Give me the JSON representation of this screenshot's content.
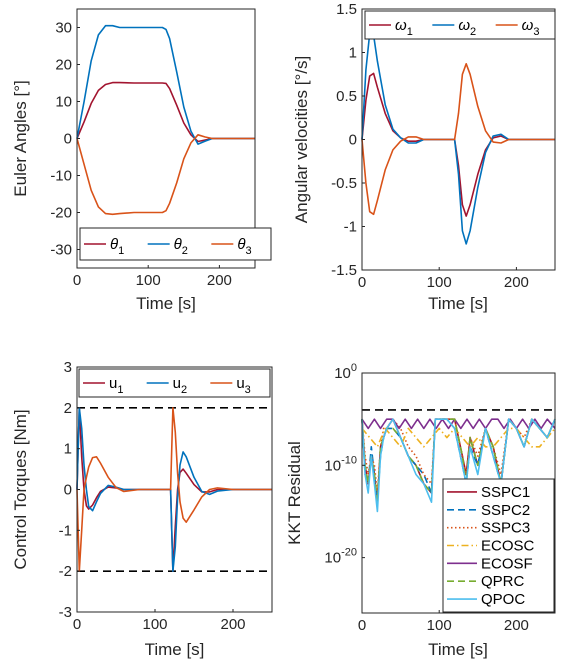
{
  "colors": {
    "dark_red": "#A2142F",
    "blue": "#0072BD",
    "orange": "#D95319",
    "yellow": "#EDB120",
    "purple": "#7E2F8E",
    "green": "#77AC30",
    "cyan": "#4DBEEE"
  },
  "chart_data": [
    {
      "type": "line",
      "title": "",
      "xlabel": "Time [s]",
      "ylabel": "Euler Angles [°]",
      "xlim": [
        0,
        250
      ],
      "ylim": [
        -35,
        35
      ],
      "xticks": [
        "0",
        "100",
        "200"
      ],
      "yticks": [
        "-30",
        "-20",
        "-10",
        "0",
        "10",
        "20",
        "30"
      ],
      "legend": {
        "placement": "bottom",
        "orientation": "horizontal"
      },
      "grid": false,
      "series": [
        {
          "name": "θ1",
          "color": "#A2142F",
          "x": [
            0,
            10,
            20,
            30,
            40,
            50,
            60,
            80,
            100,
            120,
            125,
            130,
            140,
            150,
            160,
            170,
            180,
            190,
            200,
            250
          ],
          "y": [
            0,
            4.5,
            9.5,
            13,
            14.6,
            15.1,
            15.1,
            15,
            15,
            15,
            14.9,
            13.5,
            9,
            4.2,
            1,
            -0.8,
            -0.4,
            0,
            0,
            0
          ]
        },
        {
          "name": "θ2",
          "color": "#0072BD",
          "x": [
            0,
            10,
            20,
            30,
            40,
            50,
            60,
            80,
            100,
            120,
            125,
            130,
            140,
            150,
            160,
            170,
            180,
            190,
            200,
            250
          ],
          "y": [
            0,
            10,
            21,
            28,
            30.5,
            30.5,
            30,
            30,
            30,
            30,
            29.5,
            27,
            18,
            8.5,
            2,
            -1.5,
            -0.7,
            0,
            0,
            0
          ]
        },
        {
          "name": "θ3",
          "color": "#D95319",
          "x": [
            0,
            10,
            20,
            30,
            40,
            50,
            60,
            80,
            100,
            120,
            125,
            130,
            140,
            150,
            160,
            170,
            180,
            190,
            200,
            250
          ],
          "y": [
            0,
            -7,
            -14,
            -18.5,
            -20.3,
            -20.5,
            -20.3,
            -20,
            -20,
            -20,
            -19.5,
            -17.5,
            -12,
            -5.5,
            -1.2,
            1,
            0.4,
            0,
            0,
            0
          ]
        }
      ]
    },
    {
      "type": "line",
      "title": "",
      "xlabel": "Time [s]",
      "ylabel": "Angular velocities [°/s]",
      "xlim": [
        0,
        250
      ],
      "ylim": [
        -1.5,
        1.5
      ],
      "xticks": [
        "0",
        "100",
        "200"
      ],
      "yticks": [
        "-1.5",
        "-1",
        "-0.5",
        "0",
        "0.5",
        "1",
        "1.5"
      ],
      "legend": {
        "placement": "top",
        "orientation": "horizontal"
      },
      "grid": false,
      "series": [
        {
          "name": "ω1",
          "color": "#A2142F",
          "x": [
            0,
            5,
            10,
            15,
            20,
            30,
            40,
            50,
            60,
            70,
            80,
            100,
            120,
            125,
            130,
            135,
            140,
            150,
            160,
            170,
            180,
            190,
            250
          ],
          "y": [
            0,
            0.45,
            0.73,
            0.76,
            0.6,
            0.3,
            0.1,
            0.02,
            -0.02,
            -0.02,
            0,
            0,
            0,
            -0.3,
            -0.75,
            -0.88,
            -0.75,
            -0.4,
            -0.12,
            0.02,
            0.04,
            0,
            0
          ]
        },
        {
          "name": "ω2",
          "color": "#0072BD",
          "x": [
            0,
            5,
            10,
            15,
            20,
            30,
            40,
            50,
            60,
            70,
            80,
            100,
            120,
            125,
            130,
            135,
            140,
            150,
            160,
            170,
            180,
            190,
            250
          ],
          "y": [
            0,
            0.8,
            1.22,
            1.2,
            0.9,
            0.4,
            0.12,
            0.02,
            -0.04,
            -0.04,
            0,
            0,
            0,
            -0.4,
            -1.05,
            -1.2,
            -1.05,
            -0.55,
            -0.15,
            0.04,
            0.06,
            0,
            0
          ]
        },
        {
          "name": "ω3",
          "color": "#D95319",
          "x": [
            0,
            5,
            10,
            15,
            20,
            30,
            40,
            50,
            60,
            70,
            80,
            100,
            120,
            125,
            130,
            135,
            140,
            150,
            160,
            170,
            180,
            190,
            250
          ],
          "y": [
            0,
            -0.5,
            -0.83,
            -0.86,
            -0.7,
            -0.35,
            -0.12,
            -0.02,
            0.03,
            0.03,
            0,
            0,
            0,
            0.3,
            0.75,
            0.87,
            0.75,
            0.38,
            0.1,
            -0.03,
            -0.04,
            0,
            0
          ]
        }
      ]
    },
    {
      "type": "line",
      "title": "",
      "xlabel": "Time [s]",
      "ylabel": "Control Torques [Nm]",
      "xlim": [
        0,
        250
      ],
      "ylim": [
        -3,
        3
      ],
      "xticks": [
        "0",
        "100",
        "200"
      ],
      "yticks": [
        "-3",
        "-2",
        "-1",
        "0",
        "1",
        "2",
        "3"
      ],
      "legend": {
        "placement": "top",
        "orientation": "horizontal"
      },
      "grid": false,
      "reference_lines": [
        2,
        -2
      ],
      "series": [
        {
          "name": "u1",
          "color": "#A2142F",
          "x": [
            0,
            3,
            6,
            9,
            12,
            15,
            20,
            25,
            30,
            40,
            50,
            60,
            80,
            100,
            120,
            123,
            126,
            129,
            132,
            136,
            140,
            150,
            160,
            170,
            180,
            200,
            250
          ],
          "y": [
            0,
            2,
            0.8,
            0,
            -0.4,
            -0.48,
            -0.38,
            -0.2,
            -0.05,
            0.06,
            0.04,
            0,
            0,
            0,
            0,
            -2,
            -0.9,
            0,
            0.42,
            0.5,
            0.4,
            0.12,
            -0.06,
            -0.06,
            0,
            0,
            0
          ]
        },
        {
          "name": "u2",
          "color": "#0072BD",
          "x": [
            0,
            3,
            6,
            9,
            12,
            15,
            20,
            25,
            30,
            40,
            50,
            60,
            80,
            100,
            120,
            123,
            126,
            129,
            132,
            136,
            140,
            150,
            160,
            170,
            180,
            200,
            250
          ],
          "y": [
            0,
            2,
            1.5,
            0.6,
            0,
            -0.42,
            -0.52,
            -0.3,
            -0.1,
            0.1,
            0.06,
            0,
            0,
            0,
            0,
            -2,
            -1.4,
            -0.2,
            0.6,
            0.92,
            0.8,
            0.3,
            -0.05,
            -0.12,
            -0.04,
            0,
            0
          ]
        },
        {
          "name": "u3",
          "color": "#D95319",
          "x": [
            0,
            3,
            6,
            9,
            12,
            15,
            20,
            25,
            30,
            40,
            50,
            60,
            80,
            100,
            120,
            123,
            126,
            129,
            132,
            136,
            140,
            150,
            160,
            170,
            180,
            200,
            250
          ],
          "y": [
            0,
            -2,
            -1,
            0,
            0.3,
            0.55,
            0.78,
            0.8,
            0.65,
            0.3,
            0.05,
            -0.05,
            0,
            0,
            0,
            2,
            1.4,
            0.4,
            -0.3,
            -0.7,
            -0.8,
            -0.5,
            -0.18,
            0,
            0.04,
            0,
            0
          ]
        }
      ]
    },
    {
      "type": "line",
      "title": "",
      "xlabel": "Time [s]",
      "ylabel": "KKT Residual",
      "xlim": [
        0,
        250
      ],
      "ylim": [
        1e-26,
        1
      ],
      "yscale": "log",
      "xticks": [
        "0",
        "100",
        "200"
      ],
      "yticks": [
        "10^-20",
        "10^-10",
        "10^0"
      ],
      "legend": {
        "placement": "bottom-right",
        "orientation": "vertical"
      },
      "grid": false,
      "reference_lines": [
        0.0001
      ],
      "series": [
        {
          "name": "SSPC1",
          "color": "#A2142F",
          "dash": "solid",
          "x": [
            0,
            4,
            8,
            12,
            16,
            20,
            24,
            28,
            32,
            40,
            50,
            60,
            70,
            80,
            90,
            95,
            100,
            110,
            120,
            130,
            135,
            140,
            150,
            160,
            170,
            180,
            190,
            200,
            210,
            220,
            230,
            240,
            250
          ],
          "y": [
            1e-05,
            1e-10,
            1e-12,
            1e-09,
            1e-11,
            1e-14,
            1e-08,
            1e-07,
            1e-06,
            1e-05,
            1e-07,
            1e-09,
            1e-10,
            1e-12,
            1e-13,
            1e-05,
            1e-05,
            1e-05,
            1e-05,
            1e-09,
            1e-11,
            1e-07,
            1e-10,
            1e-06,
            1e-08,
            1e-12,
            1e-05,
            1e-06,
            1e-08,
            1e-05,
            1e-06,
            1e-07,
            1e-05
          ]
        },
        {
          "name": "SSPC2",
          "color": "#0072BD",
          "dash": "dashed",
          "x": [
            0,
            4,
            8,
            12,
            16,
            20,
            24,
            28,
            32,
            40,
            50,
            60,
            70,
            80,
            90,
            95,
            100,
            110,
            120,
            130,
            135,
            140,
            150,
            160,
            170,
            180,
            190,
            200,
            210,
            220,
            230,
            240,
            250
          ],
          "y": [
            1e-05,
            1e-11,
            1e-12,
            1e-08,
            1e-11,
            1e-14,
            1e-09,
            1e-07,
            1e-06,
            1e-06,
            1e-07,
            1e-09,
            1e-10,
            1e-11,
            1e-13,
            1e-05,
            1e-05,
            1e-05,
            1e-06,
            1e-10,
            1e-12,
            1e-08,
            1e-10,
            1e-06,
            1e-09,
            1e-12,
            1e-05,
            1e-06,
            1e-08,
            1e-05,
            1e-06,
            1e-07,
            1e-05
          ]
        },
        {
          "name": "SSPC3",
          "color": "#D95319",
          "dash": "dotted",
          "x": [
            0,
            4,
            8,
            12,
            16,
            20,
            24,
            28,
            32,
            40,
            50,
            60,
            70,
            80,
            90,
            95,
            100,
            110,
            120,
            130,
            135,
            140,
            150,
            160,
            170,
            180,
            190,
            200,
            210,
            220,
            230,
            240,
            250
          ],
          "y": [
            1e-05,
            1e-09,
            1e-11,
            1e-09,
            1e-10,
            1e-13,
            1e-08,
            1e-06,
            1e-06,
            1e-05,
            1e-06,
            1e-08,
            1e-09,
            1e-11,
            1e-12,
            1e-05,
            1e-05,
            1e-05,
            1e-05,
            1e-09,
            1e-11,
            1e-07,
            1e-09,
            1e-06,
            1e-08,
            1e-11,
            1e-05,
            1e-06,
            1e-07,
            1e-05,
            1e-06,
            1e-07,
            1e-05
          ]
        },
        {
          "name": "ECOSC",
          "color": "#EDB120",
          "dash": "dashdot",
          "x": [
            0,
            10,
            20,
            30,
            40,
            50,
            60,
            70,
            80,
            90,
            100,
            110,
            120,
            130,
            140,
            150,
            160,
            170,
            180,
            190,
            200,
            210,
            220,
            230,
            240,
            250
          ],
          "y": [
            1e-06,
            1e-07,
            1e-08,
            1e-06,
            1e-07,
            1e-08,
            1e-06,
            1e-07,
            1e-08,
            1e-07,
            1e-06,
            1e-07,
            1e-06,
            1e-07,
            1e-08,
            1e-07,
            1e-08,
            1e-08,
            1e-07,
            1e-06,
            1e-06,
            1e-07,
            1e-08,
            1e-08,
            1e-07,
            1e-06
          ]
        },
        {
          "name": "ECOSF",
          "color": "#7E2F8E",
          "dash": "solid",
          "x": [
            0,
            8,
            16,
            24,
            32,
            40,
            48,
            56,
            64,
            72,
            80,
            88,
            96,
            104,
            112,
            120,
            128,
            136,
            144,
            152,
            160,
            168,
            176,
            184,
            192,
            200,
            208,
            216,
            224,
            232,
            240,
            250
          ],
          "y": [
            1e-05,
            1e-06,
            1e-05,
            1e-06,
            1e-05,
            1e-05,
            1e-06,
            1e-05,
            1e-06,
            1e-05,
            1e-06,
            1e-05,
            1e-06,
            1e-05,
            1e-06,
            1e-05,
            1e-06,
            1e-05,
            1e-06,
            1e-05,
            1e-06,
            1e-05,
            1e-05,
            1e-06,
            1e-05,
            1e-06,
            1e-05,
            1e-06,
            1e-05,
            1e-06,
            1e-05,
            1e-06
          ]
        },
        {
          "name": "QPRC",
          "color": "#77AC30",
          "dash": "dashed",
          "x": [
            0,
            4,
            8,
            12,
            16,
            20,
            24,
            28,
            32,
            40,
            50,
            60,
            70,
            80,
            90,
            95,
            100,
            110,
            120,
            130,
            135,
            140,
            150,
            160,
            170,
            180,
            190,
            200,
            210,
            220,
            230,
            240,
            250
          ],
          "y": [
            1e-05,
            1e-10,
            1e-12,
            1e-09,
            1e-11,
            1e-14,
            1e-08,
            1e-07,
            1e-06,
            1e-06,
            1e-07,
            1e-09,
            1e-10,
            1e-12,
            1e-13,
            1e-05,
            1e-05,
            1e-05,
            1e-05,
            1e-09,
            1e-12,
            1e-07,
            1e-10,
            1e-06,
            1e-08,
            1e-12,
            1e-05,
            1e-06,
            1e-08,
            1e-05,
            1e-06,
            1e-07,
            1e-05
          ]
        },
        {
          "name": "QPOC",
          "color": "#4DBEEE",
          "dash": "solid",
          "x": [
            0,
            4,
            8,
            12,
            16,
            20,
            24,
            28,
            32,
            40,
            50,
            60,
            70,
            80,
            90,
            95,
            100,
            110,
            120,
            130,
            135,
            140,
            150,
            160,
            170,
            180,
            190,
            200,
            210,
            220,
            230,
            240,
            250
          ],
          "y": [
            1e-05,
            1e-11,
            1e-13,
            1e-09,
            1e-12,
            1e-15,
            1e-09,
            1e-07,
            1e-06,
            1e-05,
            1e-07,
            1e-09,
            1e-11,
            1e-12,
            1e-14,
            1e-05,
            1e-05,
            1e-05,
            1e-06,
            1e-10,
            1e-12,
            1e-08,
            1e-11,
            1e-06,
            1e-09,
            1e-12,
            1e-05,
            1e-06,
            1e-08,
            1e-05,
            1e-06,
            1e-07,
            1e-05
          ]
        }
      ]
    }
  ]
}
